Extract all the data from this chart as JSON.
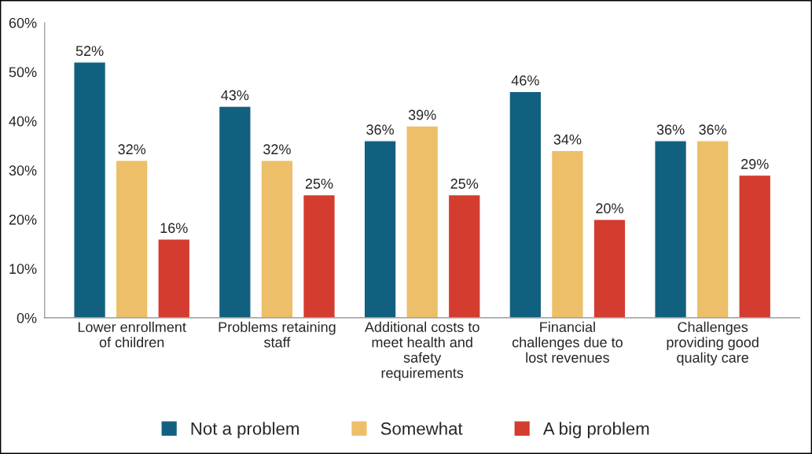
{
  "chart_data": {
    "type": "bar",
    "categories": [
      "Lower enrollment\nof children",
      "Problems retaining\nstaff",
      "Additional costs to\nmeet health and\nsafety\nrequirements",
      "Financial\nchallenges due to\nlost revenues",
      "Challenges\nproviding good\nquality care"
    ],
    "series": [
      {
        "name": "Not a problem",
        "color": "#12607f",
        "values": [
          52,
          43,
          36,
          46,
          36
        ],
        "value_labels": [
          "52%",
          "43%",
          "36%",
          "46%",
          "36%"
        ]
      },
      {
        "name": "Somewhat",
        "color": "#ecbf68",
        "values": [
          32,
          32,
          39,
          34,
          36
        ],
        "value_labels": [
          "32%",
          "32%",
          "39%",
          "34%",
          "36%"
        ]
      },
      {
        "name": "A big problem",
        "color": "#d33c2e",
        "values": [
          16,
          25,
          25,
          20,
          29
        ],
        "value_labels": [
          "16%",
          "25%",
          "25%",
          "20%",
          "29%"
        ]
      }
    ],
    "ylim": [
      0,
      60
    ],
    "yticks": [
      {
        "value": 0,
        "label": "0%"
      },
      {
        "value": 10,
        "label": "10%"
      },
      {
        "value": 20,
        "label": "20%"
      },
      {
        "value": 30,
        "label": "30%"
      },
      {
        "value": 40,
        "label": "40%"
      },
      {
        "value": 50,
        "label": "50%"
      },
      {
        "value": 60,
        "label": "60%"
      }
    ],
    "grid": false,
    "legend": "bottom"
  }
}
